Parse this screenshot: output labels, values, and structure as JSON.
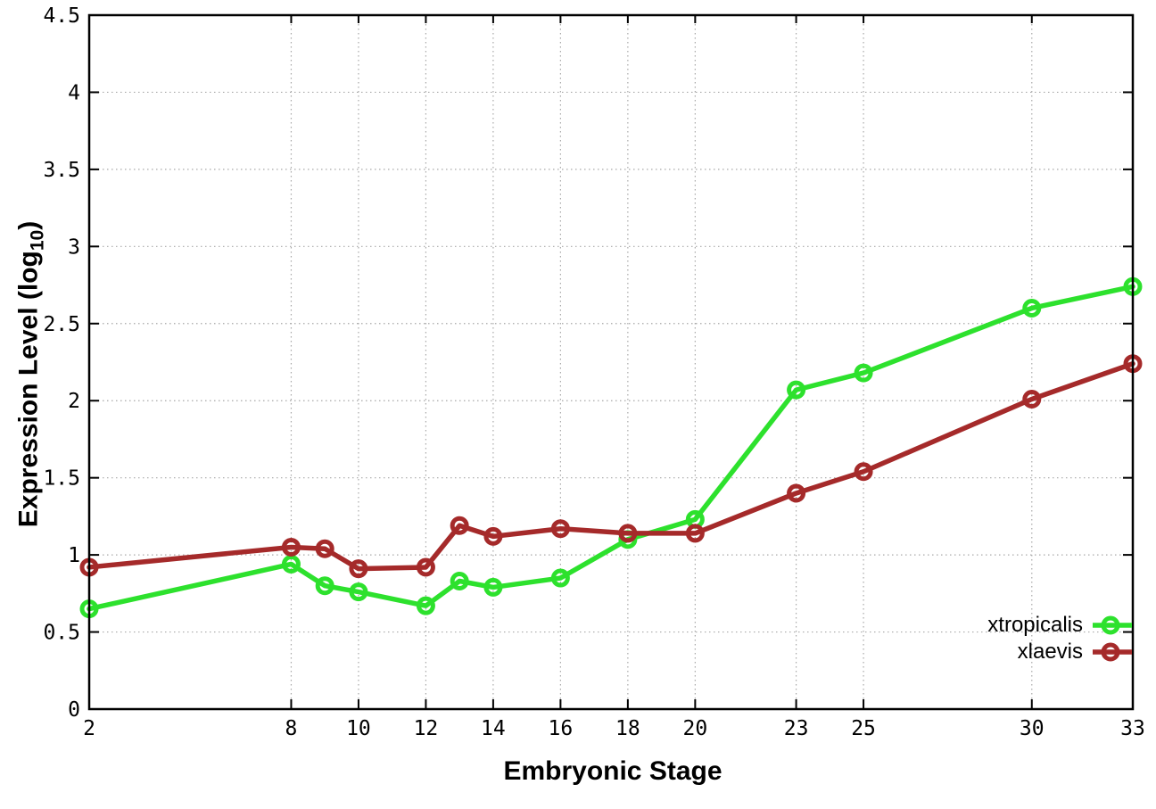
{
  "chart_data": {
    "type": "line",
    "title": "",
    "xlabel": "Embryonic Stage",
    "ylabel": "Expression Level (log10)",
    "ylabel_parts": {
      "prefix": "Expression Level (log",
      "sub": "10",
      "suffix": ")"
    },
    "x": [
      2,
      8,
      9,
      10,
      12,
      13,
      14,
      16,
      18,
      20,
      23,
      25,
      30,
      33
    ],
    "series": [
      {
        "name": "xtropicalis",
        "color": "#2de12d",
        "values": [
          0.65,
          0.94,
          0.8,
          0.76,
          0.67,
          0.83,
          0.79,
          0.85,
          1.1,
          1.23,
          2.07,
          2.18,
          2.6,
          2.74
        ]
      },
      {
        "name": "xlaevis",
        "color": "#a52a2a",
        "values": [
          0.92,
          1.05,
          1.04,
          0.91,
          0.92,
          1.19,
          1.12,
          1.17,
          1.14,
          1.14,
          1.4,
          1.54,
          2.01,
          2.24
        ]
      }
    ],
    "xlim": [
      2,
      33
    ],
    "ylim": [
      0,
      4.5
    ],
    "xticks": [
      2,
      8,
      10,
      12,
      14,
      16,
      18,
      20,
      23,
      25,
      30,
      33
    ],
    "xtick_labels": [
      "2",
      "8",
      "10",
      "12",
      "14",
      "16",
      "18",
      "20",
      "23",
      "25",
      "30",
      "33"
    ],
    "yticks": [
      0,
      0.5,
      1,
      1.5,
      2,
      2.5,
      3,
      3.5,
      4,
      4.5
    ],
    "ytick_labels": [
      "0",
      "0.5",
      "1",
      "1.5",
      "2",
      "2.5",
      "3",
      "3.5",
      "4",
      "4.5"
    ],
    "grid": true,
    "grid_style": "dotted",
    "legend_position": "bottom-right",
    "axis_color": "#000000",
    "grid_color": "#a8a8a8",
    "background_color": "#ffffff"
  }
}
